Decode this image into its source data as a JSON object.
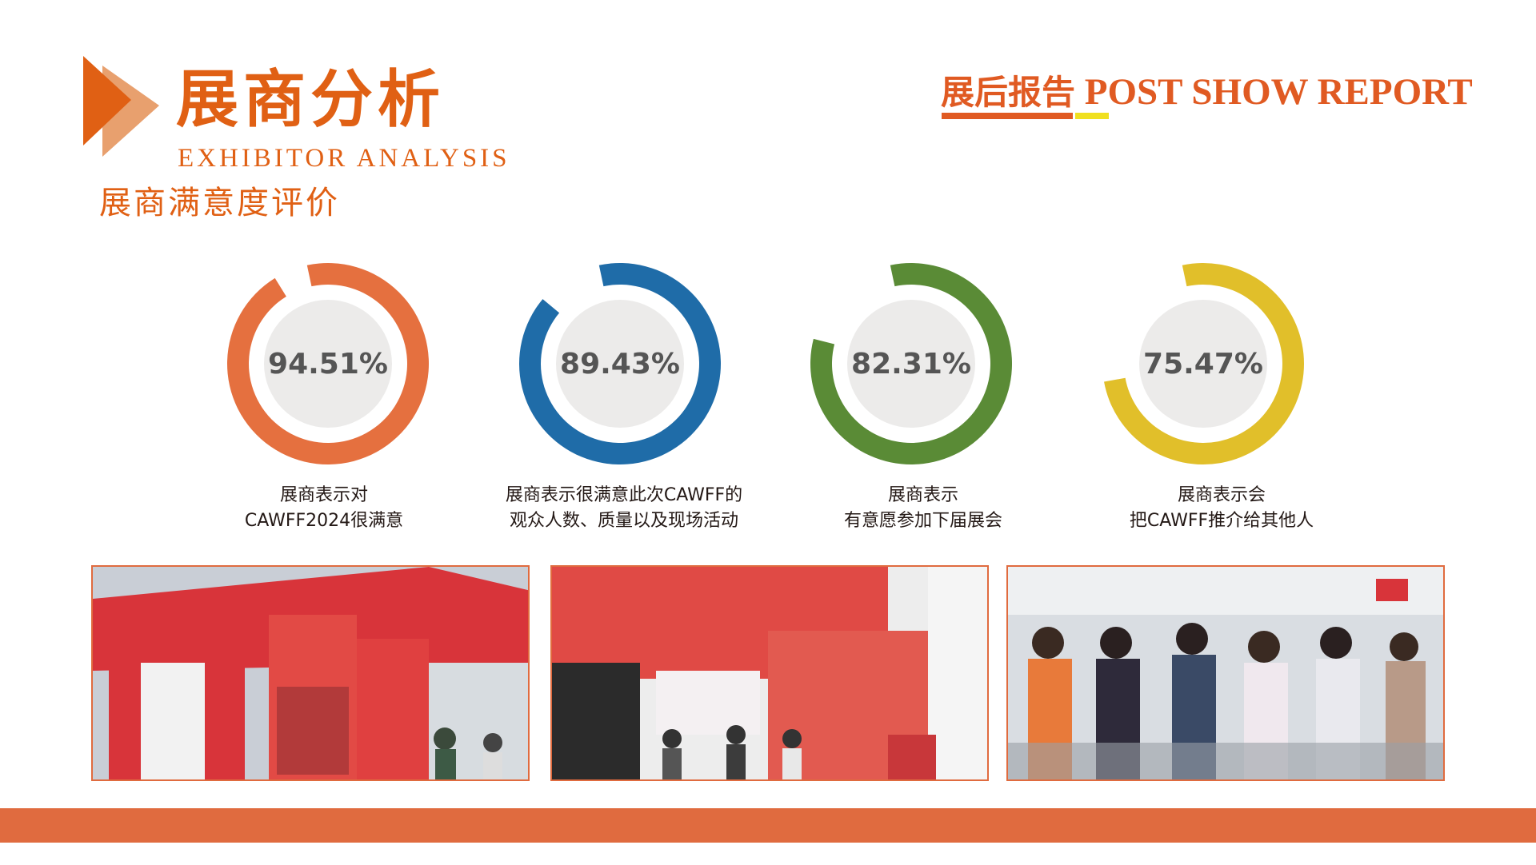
{
  "header": {
    "title_cn": "展商分析",
    "title_en": "EXHIBITOR ANALYSIS",
    "subtitle": "展商满意度评价",
    "report_cn": "展后报告",
    "report_en": "POST SHOW REPORT"
  },
  "colors": {
    "brand": "#E06014",
    "ring_bg": "#ECEBEA",
    "footer": "#E06B3F"
  },
  "gauges": [
    {
      "value": 94.51,
      "text": "94.51%",
      "color": "#E5703F",
      "line1": "展商表示对",
      "line2": "CAWFF2024很满意"
    },
    {
      "value": 89.43,
      "text": "89.43%",
      "color": "#1F6CA8",
      "line1": "展商表示很满意此次CAWFF的",
      "line2": "观众人数、质量以及现场活动"
    },
    {
      "value": 82.31,
      "text": "82.31%",
      "color": "#5A8B36",
      "line1": "展商表示",
      "line2": "有意愿参加下届展会"
    },
    {
      "value": 75.47,
      "text": "75.47%",
      "color": "#E1BF2A",
      "line1": "展商表示会",
      "line2": "把CAWFF推介给其他人"
    }
  ],
  "photos": [
    {
      "subject": "booth-jinyufang",
      "bg": "#D83A3A"
    },
    {
      "subject": "booth-three-squirrels",
      "bg": "#E04A45"
    },
    {
      "subject": "visitor-entrance",
      "bg": "#D9DDE2"
    }
  ]
}
